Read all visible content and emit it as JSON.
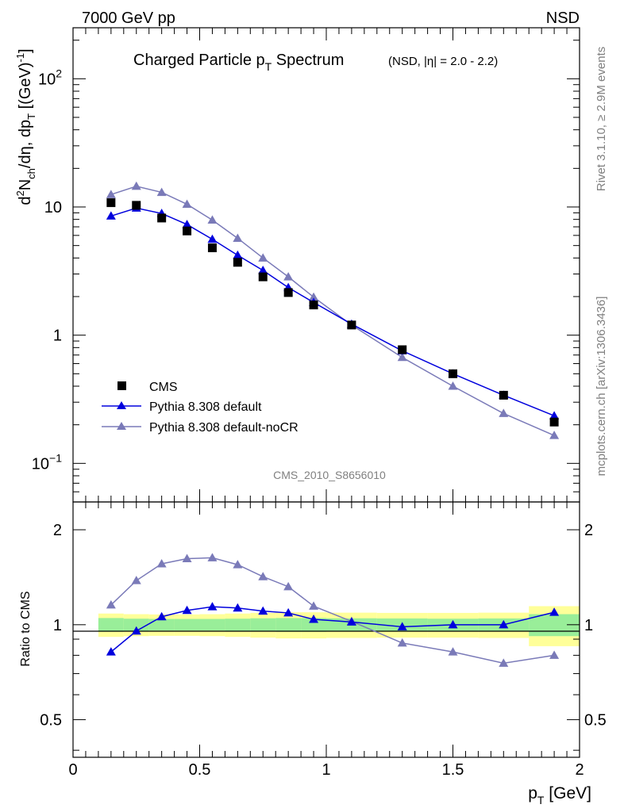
{
  "header": {
    "left": "7000 GeV pp",
    "right": "NSD"
  },
  "side": {
    "rivet": "Rivet 3.1.10, ≥ 2.9M events",
    "mcplots": "mcplots.cern.ch [arXiv:1306.3436]"
  },
  "chart_data": [
    {
      "type": "scatter",
      "title_main": "Charged Particle p",
      "title_sub": "T",
      "title_tail": " Spectrum",
      "title_note": "(NSD, |η| = 2.0 - 2.2)",
      "ylabel_parts": [
        "d",
        "2",
        "N",
        "ch",
        "/dη, dp",
        "T",
        " [(GeV)",
        "-1",
        "]"
      ],
      "analysis_id": "CMS_2010_S8656010",
      "log_y": true,
      "xlim": [
        0,
        2
      ],
      "ylim": [
        0.05,
        250
      ],
      "y_ticks": [
        {
          "value": 100,
          "base": "10",
          "exp": "2"
        },
        {
          "value": 10,
          "base": "10",
          "exp": ""
        },
        {
          "value": 1,
          "base": "1",
          "exp": ""
        },
        {
          "value": 0.1,
          "base": "10",
          "exp": "−1"
        }
      ],
      "x": [
        0.15,
        0.25,
        0.35,
        0.45,
        0.55,
        0.65,
        0.75,
        0.85,
        0.95,
        1.1,
        1.3,
        1.5,
        1.7,
        1.9
      ],
      "series": [
        {
          "name": "CMS",
          "marker": "square",
          "color": "#000000",
          "values": [
            10.8,
            10.3,
            8.2,
            6.5,
            4.8,
            3.7,
            2.85,
            2.15,
            1.72,
            1.2,
            0.77,
            0.5,
            0.34,
            0.21
          ]
        },
        {
          "name": "Pythia 8.308 default",
          "marker": "triangle",
          "color": "#0000dd",
          "values": [
            8.5,
            9.8,
            8.9,
            7.3,
            5.6,
            4.2,
            3.2,
            2.35,
            1.8,
            1.22,
            0.755,
            0.5,
            0.34,
            0.235
          ]
        },
        {
          "name": "Pythia 8.308 default-noCR",
          "marker": "triangle",
          "color": "#7a7ab8",
          "values": [
            12.5,
            14.5,
            13.0,
            10.5,
            7.9,
            5.7,
            4.0,
            2.85,
            1.98,
            1.2,
            0.67,
            0.4,
            0.245,
            0.165
          ]
        }
      ]
    },
    {
      "type": "line",
      "ylabel": "Ratio to CMS",
      "xlabel_parts": [
        "p",
        "T",
        " [GeV]"
      ],
      "xlim": [
        0,
        2
      ],
      "ylim": [
        0.38,
        2.45
      ],
      "log_y": true,
      "x_ticks": [
        "0",
        "0.5",
        "1",
        "1.5",
        "2"
      ],
      "y_ticks": [
        "0.5",
        "1",
        "2"
      ],
      "bands": {
        "edges": [
          0.1,
          0.2,
          0.3,
          0.4,
          0.5,
          0.6,
          0.7,
          0.8,
          0.9,
          1.0,
          1.2,
          1.4,
          1.6,
          1.8,
          2.0
        ],
        "stat_low": [
          0.95,
          0.955,
          0.958,
          0.958,
          0.958,
          0.955,
          0.952,
          0.95,
          0.95,
          0.952,
          0.953,
          0.955,
          0.953,
          0.92
        ],
        "stat_high": [
          1.05,
          1.045,
          1.043,
          1.043,
          1.043,
          1.045,
          1.048,
          1.05,
          1.05,
          1.048,
          1.047,
          1.045,
          1.047,
          1.08
        ],
        "total_low": [
          0.915,
          0.92,
          0.922,
          0.922,
          0.92,
          0.915,
          0.91,
          0.905,
          0.905,
          0.908,
          0.91,
          0.91,
          0.908,
          0.855
        ],
        "total_high": [
          1.085,
          1.08,
          1.078,
          1.078,
          1.08,
          1.085,
          1.09,
          1.095,
          1.095,
          1.092,
          1.09,
          1.09,
          1.092,
          1.145
        ]
      },
      "x": [
        0.15,
        0.25,
        0.35,
        0.45,
        0.55,
        0.65,
        0.75,
        0.85,
        0.95,
        1.1,
        1.3,
        1.5,
        1.7,
        1.9
      ],
      "series": [
        {
          "name": "Pythia 8.308 default",
          "color": "#0000dd",
          "values": [
            0.82,
            0.955,
            1.06,
            1.11,
            1.14,
            1.13,
            1.105,
            1.09,
            1.04,
            1.02,
            0.985,
            1.0,
            1.0,
            1.095
          ]
        },
        {
          "name": "Pythia 8.308 default-noCR",
          "color": "#7a7ab8",
          "values": [
            1.155,
            1.38,
            1.56,
            1.62,
            1.63,
            1.55,
            1.42,
            1.32,
            1.145,
            1.025,
            0.875,
            0.82,
            0.755,
            0.8
          ]
        }
      ]
    }
  ]
}
